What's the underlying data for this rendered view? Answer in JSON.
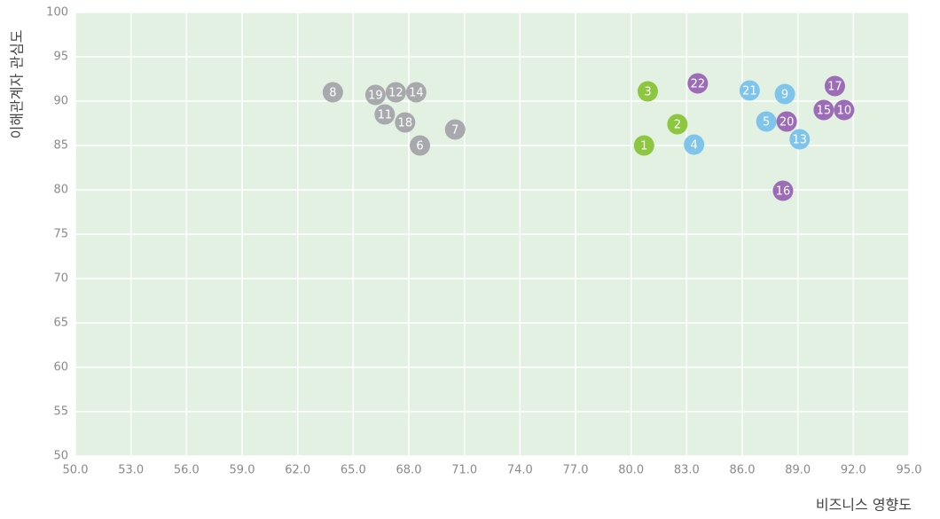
{
  "chart_data": {
    "type": "scatter",
    "xlabel": "비즈니스 영향도",
    "ylabel": "이해관계자 관심도",
    "xlim": [
      50,
      95
    ],
    "ylim": [
      50,
      100
    ],
    "xticks": [
      {
        "value": 50,
        "label": "50.0"
      },
      {
        "value": 53,
        "label": "53.0"
      },
      {
        "value": 56,
        "label": "56.0"
      },
      {
        "value": 59,
        "label": "59.0"
      },
      {
        "value": 62,
        "label": "62.0"
      },
      {
        "value": 65,
        "label": "65.0"
      },
      {
        "value": 68,
        "label": "68.0"
      },
      {
        "value": 71,
        "label": "71.0"
      },
      {
        "value": 74,
        "label": "74.0"
      },
      {
        "value": 77,
        "label": "77.0"
      },
      {
        "value": 80,
        "label": "80.0"
      },
      {
        "value": 83,
        "label": "83.0"
      },
      {
        "value": 86,
        "label": "86.0"
      },
      {
        "value": 89,
        "label": "89.0"
      },
      {
        "value": 92,
        "label": "92.0"
      },
      {
        "value": 95,
        "label": "95.0"
      }
    ],
    "yticks": [
      50,
      55,
      60,
      65,
      70,
      75,
      80,
      85,
      90,
      95,
      100
    ],
    "grid": true,
    "series": [
      {
        "color": "#a7a9ac",
        "labels": [
          "8",
          "19",
          "12",
          "14",
          "11",
          "18",
          "6",
          "7"
        ],
        "x": [
          63.9,
          66.2,
          67.3,
          68.4,
          66.7,
          67.8,
          68.6,
          70.5
        ],
        "values": [
          91.0,
          90.7,
          91.0,
          91.0,
          88.5,
          87.6,
          85.0,
          86.8
        ]
      },
      {
        "color": "#8dc63f",
        "labels": [
          "3",
          "2",
          "1"
        ],
        "x": [
          80.9,
          82.5,
          80.7
        ],
        "values": [
          91.1,
          87.4,
          85.0
        ]
      },
      {
        "color": "#7fc4ea",
        "labels": [
          "4",
          "21",
          "9",
          "5",
          "13"
        ],
        "x": [
          83.4,
          86.4,
          88.3,
          87.3,
          89.1
        ],
        "values": [
          85.1,
          91.2,
          90.8,
          87.7,
          85.7
        ]
      },
      {
        "color": "#9c6cb6",
        "labels": [
          "22",
          "20",
          "17",
          "15",
          "10",
          "16"
        ],
        "x": [
          83.6,
          88.4,
          91.0,
          90.4,
          91.5,
          88.2
        ],
        "values": [
          92.0,
          87.7,
          91.7,
          89.0,
          89.0,
          79.9
        ]
      }
    ]
  }
}
